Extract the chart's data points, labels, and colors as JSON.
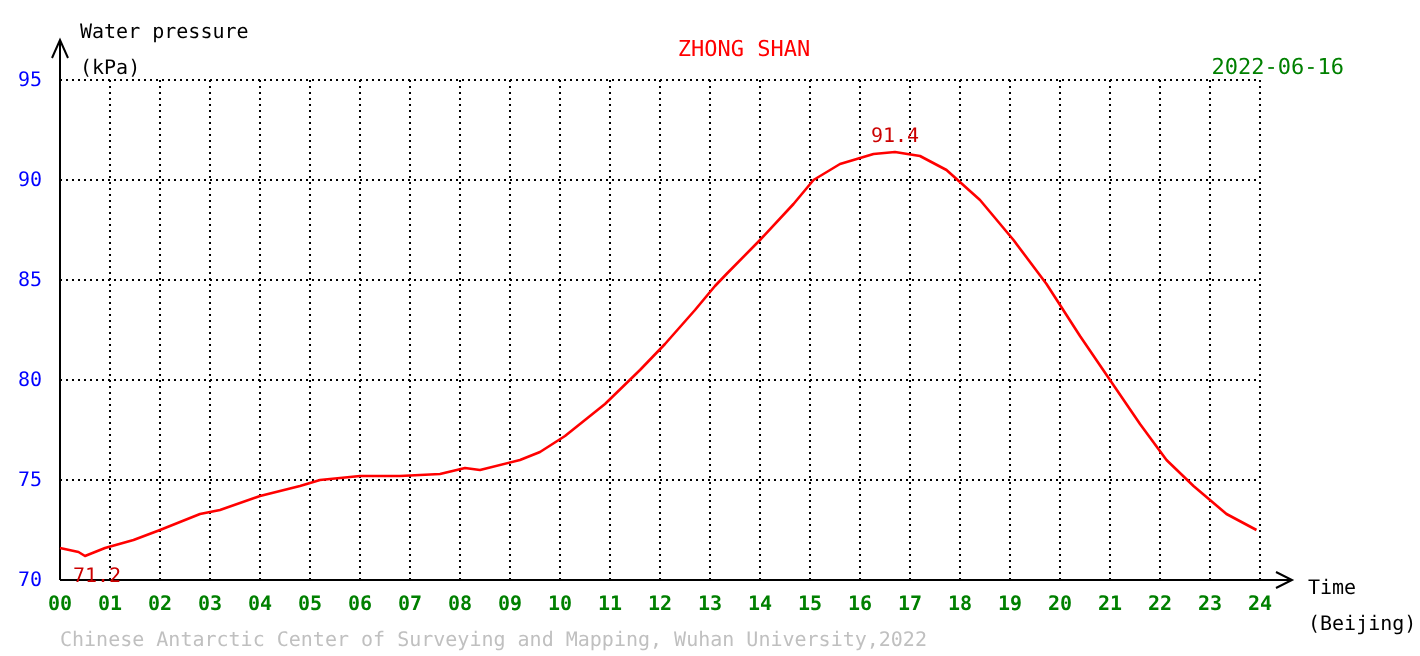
{
  "chart_data": {
    "type": "line",
    "title": "ZHONG SHAN",
    "subtitle": "2022-06-16",
    "ylabel": "Water pressure\n(kPa)",
    "xlabel": "Time\n(Beijing)",
    "x": [
      0,
      0.37,
      0.5,
      0.9,
      1.47,
      2.0,
      2.8,
      3.2,
      4.0,
      4.8,
      5.2,
      6.0,
      6.8,
      7.6,
      8.1,
      8.4,
      9.2,
      9.6,
      10.1,
      10.5,
      10.9,
      11.6,
      12.1,
      12.7,
      13.1,
      13.33,
      14.0,
      14.67,
      15.07,
      15.6,
      16.27,
      16.7,
      17.2,
      17.73,
      18.4,
      19.07,
      19.73,
      20.4,
      21.0,
      21.6,
      22.13,
      22.67,
      23.33,
      23.93
    ],
    "series": [
      {
        "color": "#ff0000",
        "values": [
          71.6,
          71.4,
          71.2,
          71.6,
          72.0,
          72.5,
          73.3,
          73.5,
          74.2,
          74.7,
          75.0,
          75.2,
          75.2,
          75.3,
          75.6,
          75.5,
          76.0,
          76.4,
          77.2,
          78.0,
          78.8,
          80.5,
          81.8,
          83.5,
          84.7,
          85.3,
          87.0,
          88.8,
          90.0,
          90.8,
          91.3,
          91.4,
          91.2,
          90.5,
          89.0,
          87.0,
          84.8,
          82.2,
          80.0,
          77.8,
          76.0,
          74.7,
          73.3,
          72.5
        ]
      }
    ],
    "xlim": [
      0,
      24
    ],
    "ylim": [
      70,
      95
    ],
    "xticks": [
      {
        "value": 0,
        "label": "00"
      },
      {
        "value": 1,
        "label": "01"
      },
      {
        "value": 2,
        "label": "02"
      },
      {
        "value": 3,
        "label": "03"
      },
      {
        "value": 4,
        "label": "04"
      },
      {
        "value": 5,
        "label": "05"
      },
      {
        "value": 6,
        "label": "06"
      },
      {
        "value": 7,
        "label": "07"
      },
      {
        "value": 8,
        "label": "08"
      },
      {
        "value": 9,
        "label": "09"
      },
      10,
      11,
      12,
      13,
      14,
      15,
      16,
      17,
      18,
      19,
      20,
      21,
      22,
      23,
      24
    ],
    "yticks": [
      70,
      75,
      80,
      85,
      90,
      95
    ],
    "grid": true,
    "marker": "none",
    "line_style": "solid",
    "annotations": [
      {
        "text": "91.4",
        "x": 16.7,
        "y": 91.4
      },
      {
        "text": "71.2",
        "x": 0.5,
        "y": 71.2
      },
      "Chinese Antarctic Center of Surveying and Mapping, Wuhan University,2022"
    ]
  }
}
